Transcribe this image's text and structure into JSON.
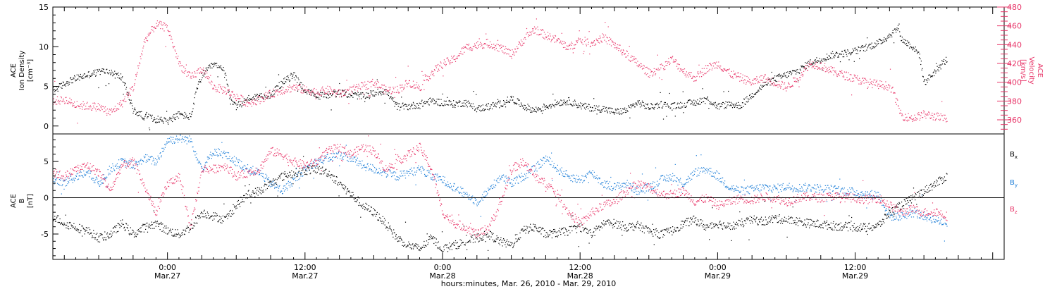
{
  "colors": {
    "black": "#000000",
    "pink": "#e8376a",
    "blue": "#1f7fd8"
  },
  "chart_data": [
    {
      "type": "scatter",
      "panel": "top",
      "ylabel_left": [
        "ACE",
        "Ion Density",
        "[cm⁻³]"
      ],
      "ylabel_right": [
        "ACE",
        "Velocity",
        "[km/s]"
      ],
      "ylim_left": [
        -1,
        15
      ],
      "yticks_left": [
        0,
        5,
        10,
        15
      ],
      "ylim_right": [
        345,
        480
      ],
      "yticks_right": [
        360,
        380,
        400,
        420,
        440,
        460,
        480
      ],
      "x_unit": "hours since 2010-03-26 00:00",
      "xlim": [
        14,
        97
      ],
      "series": [
        {
          "name": "Ion Density",
          "axis": "left",
          "color": "#000000",
          "x": [
            14,
            15.5,
            17,
            18.5,
            20,
            21,
            22,
            23,
            24,
            25,
            26,
            26.5,
            27,
            28,
            29,
            29.5,
            30,
            31,
            32,
            33,
            34,
            35,
            36,
            37,
            38,
            39,
            40,
            41,
            42,
            43,
            44,
            45,
            46,
            47,
            48,
            49,
            50,
            51,
            52,
            53,
            54,
            55,
            56,
            57,
            58,
            59,
            60,
            61,
            62,
            63,
            64,
            65,
            66,
            67,
            68,
            69,
            70,
            71,
            72,
            73,
            74,
            75,
            76,
            77,
            78,
            79,
            80,
            81,
            82,
            83,
            84,
            85,
            86,
            87,
            87.8,
            88,
            89,
            89.6,
            90,
            91,
            92
          ],
          "y": [
            4.5,
            5.8,
            6.5,
            7.0,
            6.2,
            2.0,
            1.2,
            0.9,
            0.7,
            1.5,
            1.2,
            4.5,
            6.5,
            7.8,
            7.0,
            3.0,
            2.5,
            3.5,
            3.8,
            4.0,
            5.5,
            6.5,
            4.5,
            3.8,
            4.0,
            4.2,
            4.0,
            3.8,
            4.2,
            4.5,
            2.5,
            2.5,
            2.8,
            3.2,
            3.0,
            2.8,
            3.0,
            2.2,
            2.5,
            2.8,
            3.5,
            2.6,
            2.0,
            2.5,
            3.0,
            3.2,
            2.6,
            2.3,
            2.2,
            1.8,
            2.0,
            3.0,
            2.4,
            2.8,
            2.5,
            2.8,
            3.0,
            3.5,
            2.5,
            2.8,
            2.6,
            4.0,
            5.2,
            6.0,
            6.5,
            7.0,
            8.0,
            8.5,
            9.0,
            9.2,
            9.5,
            10.0,
            10.5,
            11.5,
            12.5,
            11.0,
            10.0,
            9.0,
            5.5,
            7.0,
            8.5
          ]
        },
        {
          "name": "Velocity",
          "axis": "right",
          "color": "#e8376a",
          "x": [
            14,
            15,
            16,
            17,
            18,
            19,
            20,
            21,
            22,
            23,
            24,
            25,
            26,
            27,
            28,
            29,
            30,
            31,
            32,
            33,
            34,
            35,
            36,
            37,
            38,
            39,
            40,
            41,
            42,
            43,
            44,
            45,
            46,
            47,
            48,
            49,
            50,
            51,
            52,
            53,
            54,
            55,
            56,
            57,
            58,
            59,
            60,
            61,
            62,
            63,
            64,
            65,
            66,
            67,
            68,
            69,
            70,
            71,
            72,
            73,
            74,
            75,
            76,
            77,
            78,
            79,
            80,
            81,
            82,
            83,
            84,
            85,
            86,
            87,
            87.3,
            88,
            89,
            90,
            91,
            92
          ],
          "y": [
            380,
            382,
            376,
            375,
            374,
            368,
            378,
            395,
            445,
            462,
            458,
            420,
            405,
            415,
            395,
            392,
            385,
            378,
            382,
            388,
            392,
            395,
            392,
            390,
            392,
            388,
            392,
            396,
            400,
            392,
            392,
            400,
            395,
            410,
            420,
            425,
            437,
            440,
            442,
            437,
            430,
            445,
            457,
            450,
            445,
            437,
            445,
            442,
            448,
            440,
            430,
            420,
            410,
            415,
            425,
            412,
            405,
            415,
            420,
            410,
            405,
            400,
            405,
            400,
            395,
            405,
            420,
            418,
            412,
            408,
            404,
            400,
            398,
            396,
            390,
            365,
            362,
            366,
            364,
            361
          ]
        }
      ]
    },
    {
      "type": "scatter",
      "panel": "bottom",
      "ylabel_left": [
        "ACE",
        "B",
        "[nT]"
      ],
      "ylim": [
        -8.5,
        8.8
      ],
      "yticks": [
        -5,
        0,
        5
      ],
      "x_unit": "hours since 2010-03-26 00:00",
      "xlim": [
        14,
        97
      ],
      "xticks": [
        {
          "x": 24,
          "time": "0:00",
          "date": "Mar.27"
        },
        {
          "x": 36,
          "time": "12:00",
          "date": "Mar.27"
        },
        {
          "x": 48,
          "time": "0:00",
          "date": "Mar.28"
        },
        {
          "x": 60,
          "time": "12:00",
          "date": "Mar.28"
        },
        {
          "x": 72,
          "time": "0:00",
          "date": "Mar.29"
        },
        {
          "x": 84,
          "time": "12:00",
          "date": "Mar.29"
        }
      ],
      "xlabel": "hours:minutes, Mar. 26, 2010 - Mar. 29, 2010",
      "legend_placement": "right",
      "series": [
        {
          "name": "Bx",
          "label": "B",
          "subscript": "x",
          "color": "#000000",
          "x": [
            14,
            15,
            16,
            17,
            18,
            19,
            20,
            21,
            22,
            23,
            24,
            25,
            26,
            27,
            28,
            29,
            30,
            31,
            32,
            33,
            34,
            35,
            36,
            37,
            38,
            39,
            40,
            41,
            42,
            43,
            44,
            45,
            46,
            47,
            48,
            49,
            50,
            51,
            52,
            53,
            54,
            55,
            56,
            57,
            58,
            59,
            60,
            61,
            62,
            63,
            64,
            65,
            66,
            67,
            68,
            69,
            70,
            71,
            72,
            73,
            74,
            75,
            76,
            77,
            78,
            79,
            80,
            81,
            82,
            83,
            84,
            85,
            86,
            87,
            88,
            89,
            90,
            91,
            92
          ],
          "y": [
            -2.5,
            -3.5,
            -4.0,
            -4.5,
            -5.5,
            -5.0,
            -3.5,
            -5.0,
            -4.0,
            -3.5,
            -4.5,
            -5.0,
            -4.0,
            -2.0,
            -2.5,
            -3.0,
            -1.0,
            0.5,
            1.0,
            2.0,
            3.0,
            3.5,
            3.8,
            4.0,
            3.5,
            2.0,
            0.5,
            -1.0,
            -2.0,
            -3.5,
            -5.5,
            -6.5,
            -7.0,
            -5.5,
            -7.0,
            -6.5,
            -6.0,
            -5.5,
            -5.0,
            -6.0,
            -6.5,
            -4.5,
            -4.0,
            -5.0,
            -4.8,
            -4.5,
            -4.0,
            -5.0,
            -3.5,
            -3.5,
            -4.0,
            -3.8,
            -4.5,
            -5.0,
            -4.5,
            -3.5,
            -3.0,
            -4.0,
            -3.5,
            -4.0,
            -3.5,
            -3.0,
            -3.2,
            -2.8,
            -3.0,
            -3.2,
            -3.5,
            -3.6,
            -3.8,
            -3.9,
            -4.0,
            -4.1,
            -3.8,
            -2.0,
            -1.0,
            0.0,
            1.0,
            2.0,
            3.0
          ]
        },
        {
          "name": "By",
          "label": "B",
          "subscript": "y",
          "color": "#1f7fd8",
          "x": [
            14,
            15,
            16,
            17,
            18,
            19,
            20,
            21,
            22,
            23,
            24,
            25,
            26,
            27,
            28,
            29,
            30,
            31,
            32,
            33,
            34,
            35,
            36,
            37,
            38,
            39,
            40,
            41,
            42,
            43,
            44,
            45,
            46,
            47,
            48,
            49,
            50,
            51,
            52,
            53,
            54,
            55,
            56,
            57,
            58,
            59,
            60,
            61,
            62,
            63,
            64,
            65,
            66,
            67,
            68,
            69,
            70,
            71,
            72,
            73,
            74,
            75,
            76,
            77,
            78,
            79,
            80,
            81,
            82,
            83,
            84,
            85,
            86,
            87,
            88,
            89,
            90,
            91,
            92
          ],
          "y": [
            2.5,
            2.0,
            3.0,
            3.5,
            2.0,
            4.0,
            5.0,
            4.5,
            5.5,
            5.0,
            8.0,
            8.2,
            8.0,
            4.0,
            6.5,
            6.0,
            5.0,
            4.0,
            3.5,
            2.0,
            1.0,
            2.5,
            4.0,
            5.0,
            5.5,
            6.0,
            5.5,
            4.5,
            4.0,
            3.5,
            3.0,
            3.5,
            4.0,
            3.0,
            2.5,
            1.5,
            0.5,
            -0.5,
            1.0,
            3.0,
            2.0,
            3.0,
            4.0,
            5.5,
            4.0,
            3.0,
            2.5,
            3.5,
            2.0,
            1.5,
            2.0,
            1.0,
            1.5,
            2.5,
            3.0,
            2.0,
            3.5,
            4.0,
            3.0,
            1.5,
            1.0,
            1.2,
            1.5,
            1.3,
            1.6,
            1.4,
            1.5,
            1.3,
            1.2,
            1.0,
            0.8,
            0.5,
            0.5,
            -2.5,
            -2.5,
            -2.0,
            -2.5,
            -3.0,
            -3.5
          ]
        },
        {
          "name": "Bz",
          "label": "B",
          "subscript": "z",
          "color": "#e8376a",
          "x": [
            14,
            15,
            16,
            17,
            18,
            19,
            20,
            21,
            22,
            23,
            24,
            25,
            26,
            27,
            28,
            29,
            30,
            31,
            32,
            33,
            34,
            35,
            36,
            37,
            38,
            39,
            40,
            41,
            42,
            43,
            44,
            45,
            46,
            47,
            48,
            49,
            50,
            51,
            52,
            53,
            54,
            55,
            56,
            57,
            58,
            59,
            60,
            61,
            62,
            63,
            64,
            65,
            66,
            67,
            68,
            69,
            70,
            71,
            72,
            73,
            74,
            75,
            76,
            77,
            78,
            79,
            80,
            81,
            82,
            83,
            84,
            85,
            86,
            87,
            88,
            89,
            90,
            91,
            92
          ],
          "y": [
            3.5,
            3.0,
            4.0,
            4.5,
            3.5,
            1.0,
            4.5,
            5.0,
            1.5,
            -2.0,
            2.0,
            3.0,
            -4.0,
            4.0,
            4.0,
            4.5,
            3.0,
            3.5,
            4.0,
            6.5,
            6.0,
            5.0,
            4.5,
            5.0,
            6.5,
            7.0,
            6.0,
            7.0,
            6.5,
            4.0,
            5.0,
            6.0,
            7.0,
            4.0,
            -2.0,
            -3.5,
            -4.0,
            -5.0,
            -4.0,
            -1.0,
            4.0,
            5.0,
            3.0,
            2.0,
            0.5,
            -2.0,
            -3.5,
            -2.0,
            -1.0,
            -0.5,
            1.0,
            2.0,
            1.5,
            0.5,
            0.5,
            1.0,
            -0.5,
            0.0,
            -1.0,
            -0.5,
            0.0,
            -0.3,
            0.2,
            0.0,
            -0.5,
            0.0,
            0.2,
            0.0,
            0.3,
            0.1,
            0.0,
            -0.2,
            0.0,
            -1.0,
            -2.0,
            -1.5,
            -2.0,
            -1.8,
            -2.5
          ]
        }
      ]
    }
  ]
}
